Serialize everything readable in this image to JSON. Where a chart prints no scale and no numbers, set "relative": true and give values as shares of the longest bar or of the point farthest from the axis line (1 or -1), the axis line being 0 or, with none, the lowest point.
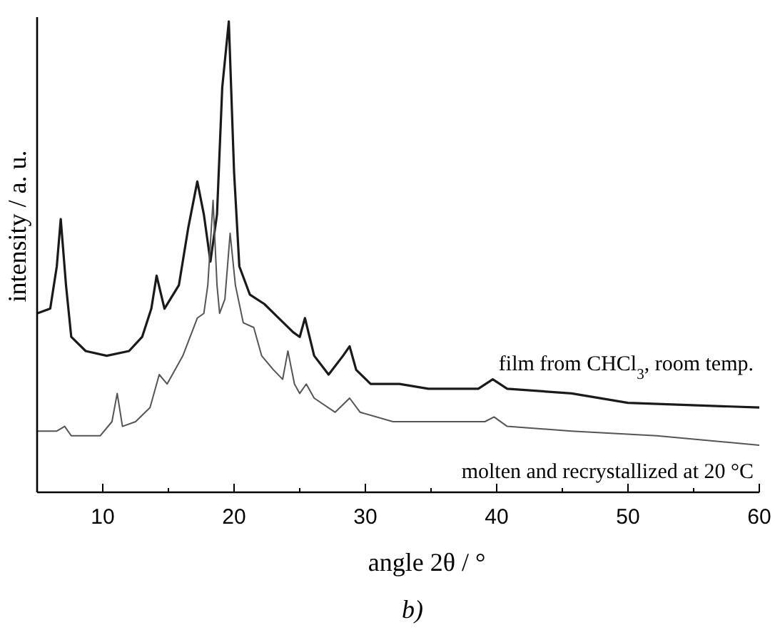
{
  "chart_data": {
    "type": "line",
    "relative": true,
    "xlabel": "angle 2θ / °",
    "ylabel": "intensity / a. u.",
    "annotations": [
      "b)"
    ],
    "legend": false,
    "line_style": "solid",
    "xlim": [
      5,
      60
    ],
    "xticks": [
      {
        "value": 5,
        "label": null
      },
      10,
      {
        "value": 15,
        "label": null
      },
      20,
      {
        "value": 25,
        "label": null
      },
      30,
      {
        "value": 35,
        "label": null
      },
      40,
      {
        "value": 45,
        "label": null
      },
      50,
      {
        "value": 55,
        "label": null
      },
      60
    ],
    "series": [
      {
        "name": "film from CHCl$_{3}$, room temp.",
        "color": "#1a1a1a",
        "x": [
          5.0,
          6.0,
          6.5,
          6.8,
          7.2,
          7.6,
          8.7,
          10.3,
          12.0,
          13.0,
          13.7,
          14.1,
          14.7,
          15.8,
          16.5,
          17.2,
          17.7,
          18.2,
          18.7,
          19.1,
          19.6,
          20.0,
          20.4,
          21.2,
          22.3,
          23.4,
          24.5,
          25.0,
          25.4,
          26.1,
          27.2,
          28.3,
          28.8,
          29.3,
          30.4,
          32.6,
          34.8,
          38.6,
          39.7,
          40.8,
          45.7,
          50.0,
          60.0
        ],
        "values": [
          0.38,
          0.39,
          0.48,
          0.58,
          0.44,
          0.33,
          0.3,
          0.29,
          0.3,
          0.33,
          0.39,
          0.46,
          0.39,
          0.44,
          0.56,
          0.66,
          0.59,
          0.49,
          0.59,
          0.86,
          1.0,
          0.68,
          0.48,
          0.42,
          0.4,
          0.37,
          0.34,
          0.33,
          0.37,
          0.29,
          0.25,
          0.29,
          0.31,
          0.26,
          0.23,
          0.23,
          0.22,
          0.22,
          0.24,
          0.22,
          0.21,
          0.19,
          0.18
        ]
      },
      {
        "name": "molten and recrystallized at 20 °C",
        "color": "#555555",
        "x": [
          5.0,
          6.5,
          7.1,
          7.6,
          9.8,
          10.7,
          11.1,
          11.5,
          12.5,
          13.6,
          14.3,
          14.9,
          16.1,
          17.2,
          17.7,
          18.0,
          18.4,
          18.7,
          18.9,
          19.3,
          19.7,
          20.1,
          20.7,
          21.5,
          22.1,
          23.0,
          23.7,
          24.1,
          24.6,
          25.0,
          25.5,
          26.1,
          27.7,
          28.8,
          29.6,
          32.1,
          37.0,
          39.1,
          39.8,
          40.8,
          45.7,
          52.2,
          60.0
        ],
        "values": [
          0.13,
          0.13,
          0.14,
          0.12,
          0.12,
          0.15,
          0.21,
          0.14,
          0.15,
          0.18,
          0.25,
          0.23,
          0.29,
          0.37,
          0.38,
          0.44,
          0.62,
          0.44,
          0.38,
          0.41,
          0.55,
          0.44,
          0.36,
          0.35,
          0.29,
          0.26,
          0.24,
          0.3,
          0.23,
          0.21,
          0.23,
          0.2,
          0.17,
          0.2,
          0.17,
          0.15,
          0.15,
          0.15,
          0.16,
          0.14,
          0.13,
          0.12,
          0.1
        ]
      }
    ]
  }
}
